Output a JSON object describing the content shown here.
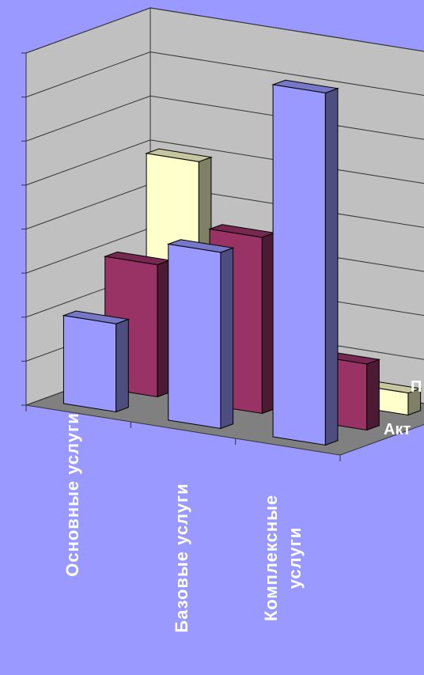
{
  "chart_data": {
    "type": "bar3d",
    "categories": [
      "Основные услуги",
      "Базовые услуги",
      "Комплексные услуги"
    ],
    "series": [
      {
        "name": "Акт",
        "color": "#9999ff",
        "values": [
          2,
          4,
          8
        ]
      },
      {
        "name": "П",
        "color": "#993366",
        "values": [
          3,
          4,
          1.5
        ]
      },
      {
        "color": "#ffffcc",
        "values": [
          5,
          2,
          0.5
        ]
      }
    ],
    "ylim": [
      0,
      8
    ],
    "yticks": [
      0,
      1,
      2,
      3,
      4,
      5,
      6,
      7,
      8
    ],
    "grid": true
  }
}
